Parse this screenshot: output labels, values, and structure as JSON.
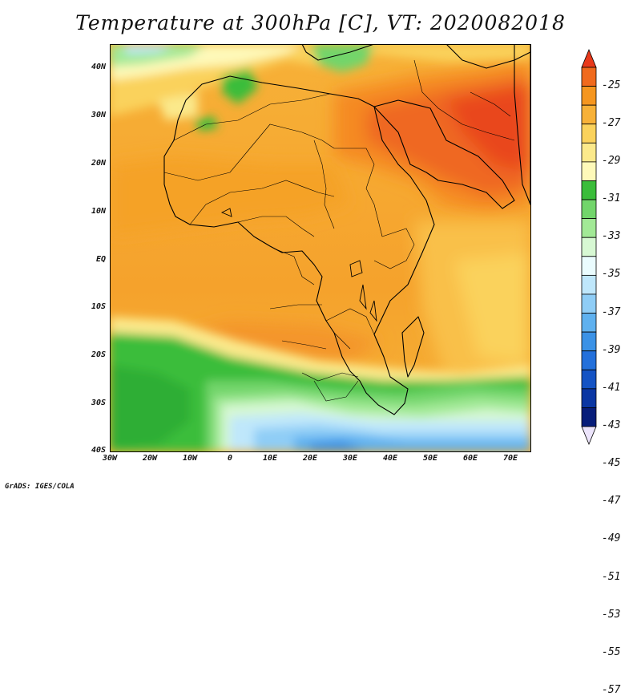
{
  "title": "Temperature at 300hPa [C], VT: 2020082018",
  "footer": "GrADS: IGES/COLA",
  "map": {
    "lat_labels": [
      "40N",
      "30N",
      "20N",
      "10N",
      "EQ",
      "10S",
      "20S",
      "30S",
      "40S"
    ],
    "lon_labels": [
      "30W",
      "20W",
      "10W",
      "0",
      "10E",
      "20E",
      "30E",
      "40E",
      "50E",
      "60E",
      "70E"
    ],
    "lat_range": [
      -40,
      45
    ],
    "lon_range": [
      -30,
      75
    ]
  },
  "colorbar": {
    "labels": [
      "-25",
      "-27",
      "-29",
      "-31",
      "-33",
      "-35",
      "-37",
      "-39",
      "-41",
      "-43",
      "-45",
      "-47",
      "-49",
      "-51",
      "-53",
      "-55",
      "-57"
    ],
    "colors": [
      "#e8391b",
      "#f06a1d",
      "#f5961f",
      "#f7b138",
      "#fad25c",
      "#fbe98b",
      "#fef9b9",
      "#3bbd3b",
      "#72d56b",
      "#a2e996",
      "#d7f8d3",
      "#eafcfe",
      "#bfe7fb",
      "#8fcdf6",
      "#5fb1ef",
      "#3b92e6",
      "#2370db",
      "#1453c4",
      "#0a36a3",
      "#071d7a",
      "#ece4fb"
    ]
  }
}
